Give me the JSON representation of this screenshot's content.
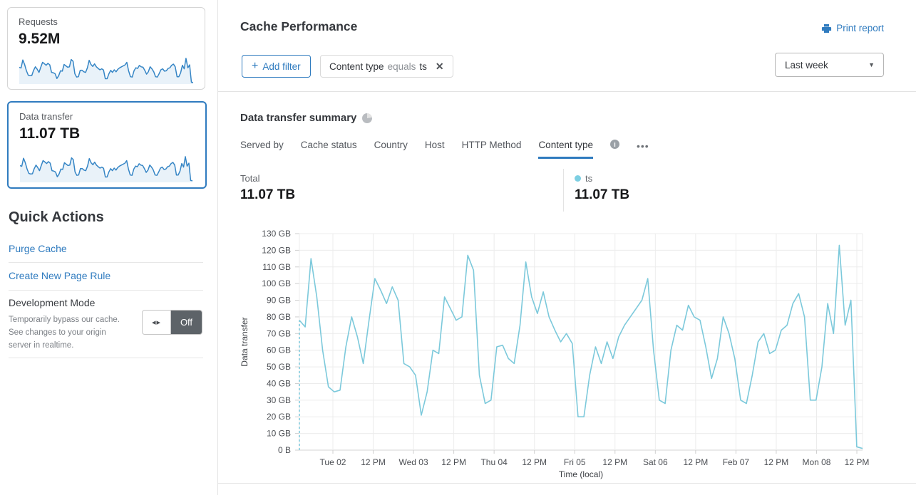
{
  "header": {
    "title": "Cache Performance",
    "print_report": "Print report",
    "add_filter": "Add filter",
    "filter_chip": {
      "field": "Content type",
      "operator": "equals",
      "value": "ts"
    },
    "time_range": "Last week"
  },
  "icons": {
    "plus": "+",
    "close": "✕",
    "caret": "▼",
    "toggle_arrows": "◂▸",
    "more_dots": "•••"
  },
  "sidebar": {
    "cards": [
      {
        "label": "Requests",
        "value": "9.52M"
      },
      {
        "label": "Data transfer",
        "value": "11.07 TB"
      }
    ],
    "quick_actions": {
      "title": "Quick Actions",
      "purge_cache": "Purge Cache",
      "create_page_rule": "Create New Page Rule",
      "dev_mode": {
        "title": "Development Mode",
        "description": "Temporarily bypass our cache. See changes to your origin server in realtime.",
        "toggle": "Off"
      }
    }
  },
  "summary": {
    "title": "Data transfer summary",
    "tabs": [
      "Served by",
      "Cache status",
      "Country",
      "Host",
      "HTTP Method",
      "Content type"
    ],
    "active_tab": "Content type",
    "total_label": "Total",
    "total_value": "11.07 TB",
    "series_label": "ts",
    "series_value": "11.07 TB"
  },
  "chart_data": {
    "type": "line",
    "title": "Data transfer summary",
    "xlabel": "Time (local)",
    "ylabel": "Data transfer",
    "unit": "GB",
    "ylim": [
      0,
      130
    ],
    "ytick_step": 10,
    "ytick_labels": [
      "0 B",
      "10 GB",
      "20 GB",
      "30 GB",
      "40 GB",
      "50 GB",
      "60 GB",
      "70 GB",
      "80 GB",
      "90 GB",
      "100 GB",
      "110 GB",
      "120 GB",
      "130 GB"
    ],
    "xtick_labels": [
      "Tue 02",
      "12 PM",
      "Wed 03",
      "12 PM",
      "Thu 04",
      "12 PM",
      "Fri 05",
      "12 PM",
      "Sat 06",
      "12 PM",
      "Feb 07",
      "12 PM",
      "Mon 08",
      "12 PM"
    ],
    "grid": true,
    "start_dashed": true,
    "legend_position": "above-chart-right",
    "series": [
      {
        "name": "ts",
        "color": "#7cc9db",
        "values": [
          78,
          74,
          115,
          92,
          60,
          38,
          35,
          36,
          62,
          80,
          68,
          52,
          78,
          103,
          96,
          88,
          98,
          90,
          52,
          50,
          45,
          21,
          35,
          60,
          58,
          92,
          85,
          78,
          80,
          117,
          108,
          45,
          28,
          30,
          62,
          63,
          55,
          52,
          75,
          113,
          92,
          82,
          95,
          80,
          72,
          65,
          70,
          64,
          20,
          20,
          45,
          62,
          52,
          65,
          55,
          68,
          75,
          80,
          85,
          90,
          103,
          60,
          30,
          28,
          60,
          75,
          72,
          87,
          80,
          78,
          62,
          43,
          55,
          80,
          70,
          55,
          30,
          28,
          45,
          65,
          70,
          58,
          60,
          72,
          75,
          88,
          94,
          80,
          30,
          30,
          50,
          88,
          70,
          123,
          75,
          90,
          2,
          1
        ]
      }
    ]
  },
  "colors": {
    "accent_blue": "#2f7bbf",
    "series_blue": "#7cc9db",
    "spark_blue": "#3585c5",
    "spark_fill": "#e9f2f9"
  }
}
